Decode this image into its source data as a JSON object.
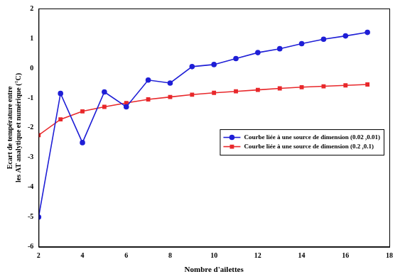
{
  "chart_data": {
    "type": "line",
    "x_label": "Nombre d'ailettes",
    "y_label": [
      "Ecart de température entre",
      "les AT analytique et numérique (°C)"
    ],
    "x": [
      2,
      3,
      4,
      5,
      6,
      7,
      8,
      9,
      10,
      11,
      12,
      13,
      14,
      15,
      16,
      17
    ],
    "series": [
      {
        "name": "Courbe liée à une source de dimension (0.02 ,0.01)",
        "color": "#1f1fd6",
        "marker": "circle",
        "line_style": "solid",
        "values": [
          -5.0,
          -0.85,
          -2.5,
          -0.8,
          -1.3,
          -0.4,
          -0.5,
          0.05,
          0.12,
          0.32,
          0.52,
          0.65,
          0.82,
          0.97,
          1.08,
          1.2
        ]
      },
      {
        "name": "Courbe liée à une source de dimension (0.2 ,0.1)",
        "color": "#e8282b",
        "marker": "square",
        "line_style": "solid",
        "values": [
          -2.25,
          -1.72,
          -1.45,
          -1.3,
          -1.17,
          -1.05,
          -0.97,
          -0.89,
          -0.83,
          -0.78,
          -0.73,
          -0.68,
          -0.64,
          -0.61,
          -0.58,
          -0.55
        ]
      }
    ],
    "xlim": [
      2,
      18
    ],
    "xticks": [
      2,
      4,
      6,
      8,
      10,
      12,
      14,
      16,
      18
    ],
    "ylim": [
      -6,
      2
    ],
    "yticks": [
      -6,
      -5,
      -4,
      -3,
      -2,
      -1,
      0,
      1,
      2
    ],
    "grid": false,
    "legend": "right"
  }
}
